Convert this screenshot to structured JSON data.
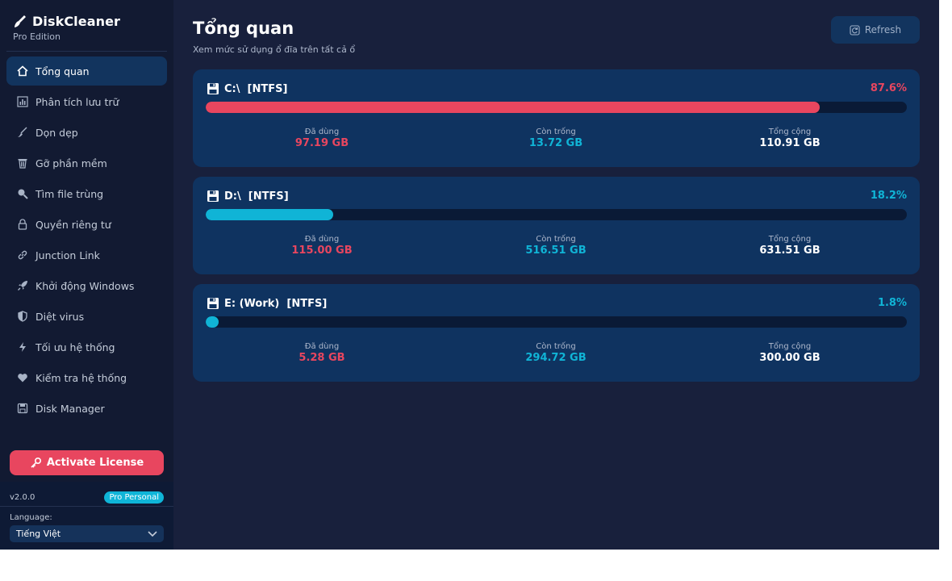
{
  "app": {
    "title": "DiskCleaner",
    "edition": "Pro Edition"
  },
  "sidebar": {
    "items": [
      {
        "label": "Tổng quan",
        "icon": "home-icon",
        "active": true
      },
      {
        "label": "Phân tích lưu trữ",
        "icon": "bar-chart-icon",
        "active": false
      },
      {
        "label": "Dọn dẹp",
        "icon": "broom-icon",
        "active": false
      },
      {
        "label": "Gỡ phần mềm",
        "icon": "trash-icon",
        "active": false
      },
      {
        "label": "Tìm file trùng",
        "icon": "search-icon",
        "active": false
      },
      {
        "label": "Quyền riêng tư",
        "icon": "lock-icon",
        "active": false
      },
      {
        "label": "Junction Link",
        "icon": "link-icon",
        "active": false
      },
      {
        "label": "Khởi động Windows",
        "icon": "rocket-icon",
        "active": false
      },
      {
        "label": "Diệt virus",
        "icon": "shield-icon",
        "active": false
      },
      {
        "label": "Tối ưu hệ thống",
        "icon": "bolt-icon",
        "active": false
      },
      {
        "label": "Kiểm tra hệ thống",
        "icon": "heart-icon",
        "active": false
      },
      {
        "label": "Disk Manager",
        "icon": "disk-icon",
        "active": false
      }
    ],
    "activate_label": "Activate License",
    "version": "v2.0.0",
    "license_badge": "Pro Personal",
    "language_label": "Language:",
    "language_value": "Tiếng Việt"
  },
  "main": {
    "title": "Tổng quan",
    "subtitle": "Xem mức sử dụng ổ đĩa trên tất cả ổ",
    "refresh_label": "Refresh",
    "stat_labels": {
      "used": "Đã dùng",
      "free": "Còn trống",
      "total": "Tổng cộng"
    },
    "drives": [
      {
        "name": "C:\\  [NTFS]",
        "percent": "87.6%",
        "fill": 0.876,
        "used": "97.19 GB",
        "free": "13.72 GB",
        "total": "110.91 GB",
        "color": "#e8465f"
      },
      {
        "name": "D:\\  [NTFS]",
        "percent": "18.2%",
        "fill": 0.182,
        "used": "115.00 GB",
        "free": "516.51 GB",
        "total": "631.51 GB",
        "color": "#10b4d6"
      },
      {
        "name": "E: (Work)  [NTFS]",
        "percent": "1.8%",
        "fill": 0.018,
        "used": "5.28 GB",
        "free": "294.72 GB",
        "total": "300.00 GB",
        "color": "#10b4d6"
      }
    ]
  },
  "colors": {
    "used": "#e8465f",
    "free": "#10b4d6",
    "accent_active": "#12345e"
  }
}
